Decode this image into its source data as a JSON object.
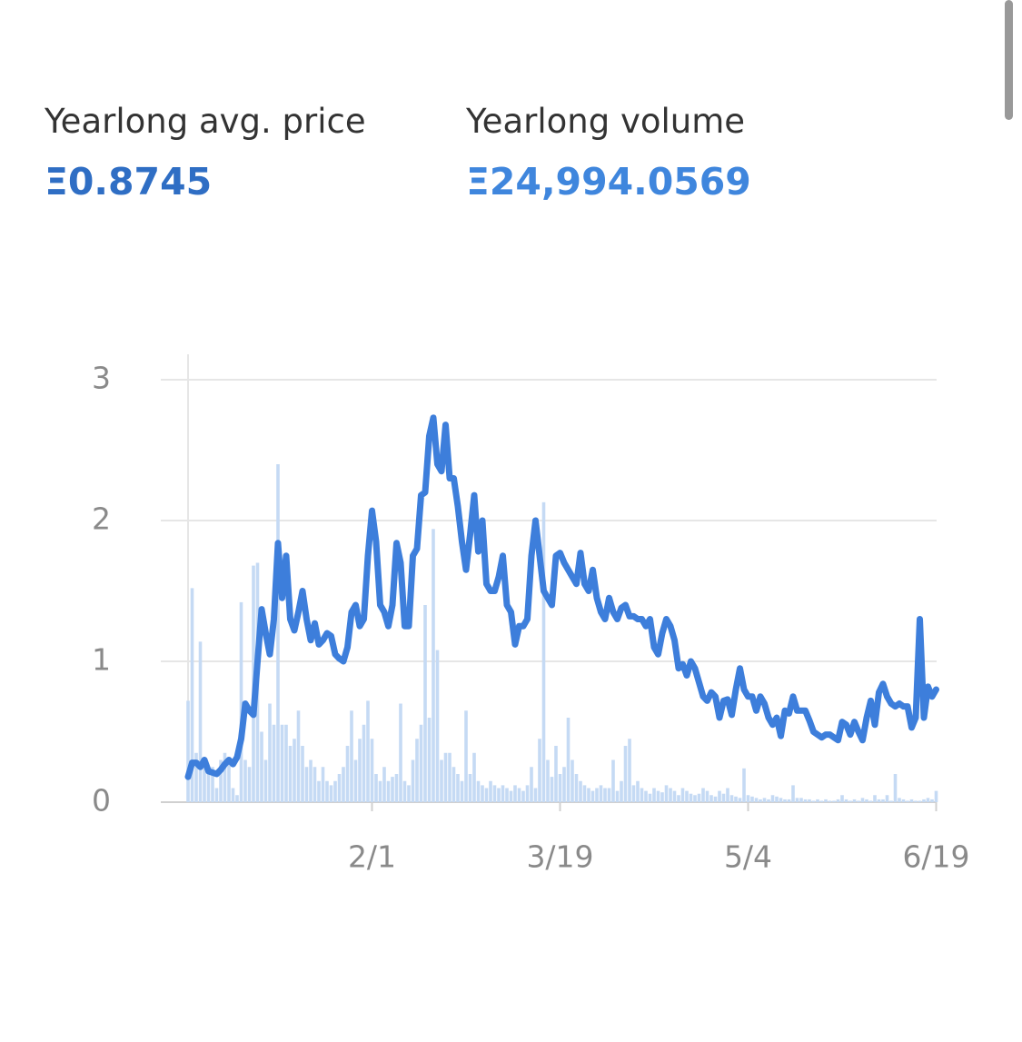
{
  "header": {
    "avg_price_label": "Yearlong avg. price",
    "avg_price_value": "Ξ0.8745",
    "volume_label": "Yearlong volume",
    "volume_value": "Ξ24,994.0569"
  },
  "chart_data": {
    "type": "combo",
    "categories": [
      null,
      null,
      null,
      null,
      null,
      null,
      null,
      null,
      null,
      null,
      null,
      null,
      null,
      null,
      null,
      null,
      null,
      null,
      null,
      null,
      null,
      null,
      null,
      null,
      null,
      null,
      null,
      null,
      null,
      null,
      null,
      null,
      null,
      null,
      null,
      null,
      null,
      null,
      null,
      null,
      null,
      null,
      null,
      null,
      null,
      "2/1",
      null,
      null,
      null,
      null,
      null,
      null,
      null,
      null,
      null,
      null,
      null,
      null,
      null,
      null,
      null,
      null,
      null,
      null,
      null,
      null,
      null,
      null,
      null,
      null,
      null,
      null,
      null,
      null,
      null,
      null,
      null,
      null,
      null,
      null,
      null,
      null,
      null,
      null,
      null,
      null,
      null,
      null,
      null,
      null,
      null,
      "3/19",
      null,
      null,
      null,
      null,
      null,
      null,
      null,
      null,
      null,
      null,
      null,
      null,
      null,
      null,
      null,
      null,
      null,
      null,
      null,
      null,
      null,
      null,
      null,
      null,
      null,
      null,
      null,
      null,
      null,
      null,
      null,
      null,
      null,
      null,
      null,
      null,
      null,
      null,
      null,
      null,
      null,
      null,
      null,
      null,
      null,
      "5/4",
      null,
      null,
      null,
      null,
      null,
      null,
      null,
      null,
      null,
      null,
      null,
      null,
      null,
      null,
      null,
      null,
      null,
      null,
      null,
      null,
      null,
      null,
      null,
      null,
      null,
      null,
      null,
      null,
      null,
      null,
      null,
      null,
      null,
      null,
      null,
      null,
      null,
      null,
      null,
      null,
      null,
      null,
      null,
      null,
      null,
      "6/19"
    ],
    "series": [
      {
        "type": "bar",
        "color": "#c5daf4",
        "values": [
          0.72,
          1.52,
          0.35,
          1.14,
          0.3,
          0.2,
          0.25,
          0.1,
          0.3,
          0.35,
          0.28,
          0.1,
          0.05,
          1.42,
          0.3,
          0.25,
          1.68,
          1.7,
          0.5,
          0.3,
          0.7,
          0.55,
          2.4,
          0.55,
          0.55,
          0.4,
          0.45,
          0.65,
          0.4,
          0.25,
          0.3,
          0.25,
          0.15,
          0.25,
          0.15,
          0.12,
          0.15,
          0.2,
          0.25,
          0.4,
          0.65,
          0.3,
          0.45,
          0.55,
          0.72,
          0.45,
          0.2,
          0.15,
          0.25,
          0.15,
          0.18,
          0.2,
          0.7,
          0.15,
          0.12,
          0.3,
          0.45,
          0.55,
          1.4,
          0.6,
          1.94,
          1.08,
          0.3,
          0.35,
          0.35,
          0.25,
          0.2,
          0.15,
          0.65,
          0.2,
          0.35,
          0.15,
          0.12,
          0.1,
          0.15,
          0.12,
          0.1,
          0.12,
          0.1,
          0.08,
          0.12,
          0.1,
          0.08,
          0.12,
          0.25,
          0.1,
          0.45,
          2.13,
          0.3,
          0.18,
          0.4,
          0.2,
          0.25,
          0.6,
          0.3,
          0.2,
          0.15,
          0.12,
          0.1,
          0.08,
          0.1,
          0.12,
          0.1,
          0.1,
          0.3,
          0.08,
          0.15,
          0.4,
          0.45,
          0.12,
          0.15,
          0.1,
          0.08,
          0.06,
          0.1,
          0.08,
          0.07,
          0.12,
          0.1,
          0.08,
          0.05,
          0.1,
          0.08,
          0.06,
          0.05,
          0.06,
          0.1,
          0.08,
          0.05,
          0.04,
          0.08,
          0.06,
          0.1,
          0.05,
          0.04,
          0.03,
          0.24,
          0.05,
          0.04,
          0.03,
          0.02,
          0.03,
          0.02,
          0.05,
          0.04,
          0.03,
          0.02,
          0.02,
          0.12,
          0.03,
          0.03,
          0.02,
          0.02,
          0.01,
          0.02,
          0.01,
          0.02,
          0.01,
          0.01,
          0.02,
          0.05,
          0.02,
          0.01,
          0.02,
          0.01,
          0.03,
          0.02,
          0.01,
          0.05,
          0.02,
          0.02,
          0.05,
          0.01,
          0.2,
          0.03,
          0.02,
          0.01,
          0.02,
          0.01,
          0.01,
          0.02,
          0.03,
          0.02,
          0.08
        ]
      },
      {
        "type": "line",
        "color": "#3d7edb",
        "values": [
          0.18,
          0.28,
          0.28,
          0.25,
          0.3,
          0.22,
          0.21,
          0.2,
          0.23,
          0.27,
          0.3,
          0.27,
          0.32,
          0.45,
          0.7,
          0.65,
          0.62,
          1.0,
          1.37,
          1.2,
          1.05,
          1.3,
          1.84,
          1.45,
          1.75,
          1.3,
          1.22,
          1.35,
          1.5,
          1.3,
          1.15,
          1.27,
          1.12,
          1.15,
          1.2,
          1.18,
          1.05,
          1.02,
          1.0,
          1.1,
          1.35,
          1.4,
          1.25,
          1.3,
          1.75,
          2.07,
          1.85,
          1.4,
          1.35,
          1.25,
          1.4,
          1.84,
          1.7,
          1.25,
          1.25,
          1.75,
          1.8,
          2.18,
          2.2,
          2.6,
          2.73,
          2.4,
          2.35,
          2.68,
          2.3,
          2.3,
          2.1,
          1.85,
          1.65,
          1.9,
          2.18,
          1.78,
          2.0,
          1.55,
          1.5,
          1.5,
          1.6,
          1.75,
          1.4,
          1.35,
          1.12,
          1.25,
          1.25,
          1.3,
          1.75,
          2.0,
          1.75,
          1.5,
          1.45,
          1.4,
          1.75,
          1.77,
          1.7,
          1.65,
          1.6,
          1.55,
          1.77,
          1.55,
          1.5,
          1.65,
          1.45,
          1.35,
          1.3,
          1.45,
          1.35,
          1.3,
          1.38,
          1.4,
          1.32,
          1.32,
          1.3,
          1.3,
          1.25,
          1.3,
          1.1,
          1.05,
          1.2,
          1.3,
          1.25,
          1.15,
          0.95,
          0.98,
          0.9,
          1.0,
          0.95,
          0.85,
          0.75,
          0.72,
          0.78,
          0.75,
          0.6,
          0.72,
          0.73,
          0.62,
          0.8,
          0.95,
          0.8,
          0.75,
          0.75,
          0.65,
          0.75,
          0.7,
          0.6,
          0.55,
          0.6,
          0.47,
          0.65,
          0.63,
          0.75,
          0.65,
          0.65,
          0.65,
          0.58,
          0.5,
          0.48,
          0.46,
          0.48,
          0.48,
          0.46,
          0.44,
          0.57,
          0.55,
          0.48,
          0.57,
          0.5,
          0.44,
          0.6,
          0.72,
          0.55,
          0.78,
          0.84,
          0.75,
          0.7,
          0.68,
          0.7,
          0.68,
          0.68,
          0.53,
          0.6,
          1.3,
          0.6,
          0.82,
          0.75,
          0.8
        ]
      }
    ],
    "ylim": [
      0,
      3
    ],
    "yticks": [
      0,
      1,
      2,
      3
    ],
    "grid": true
  }
}
